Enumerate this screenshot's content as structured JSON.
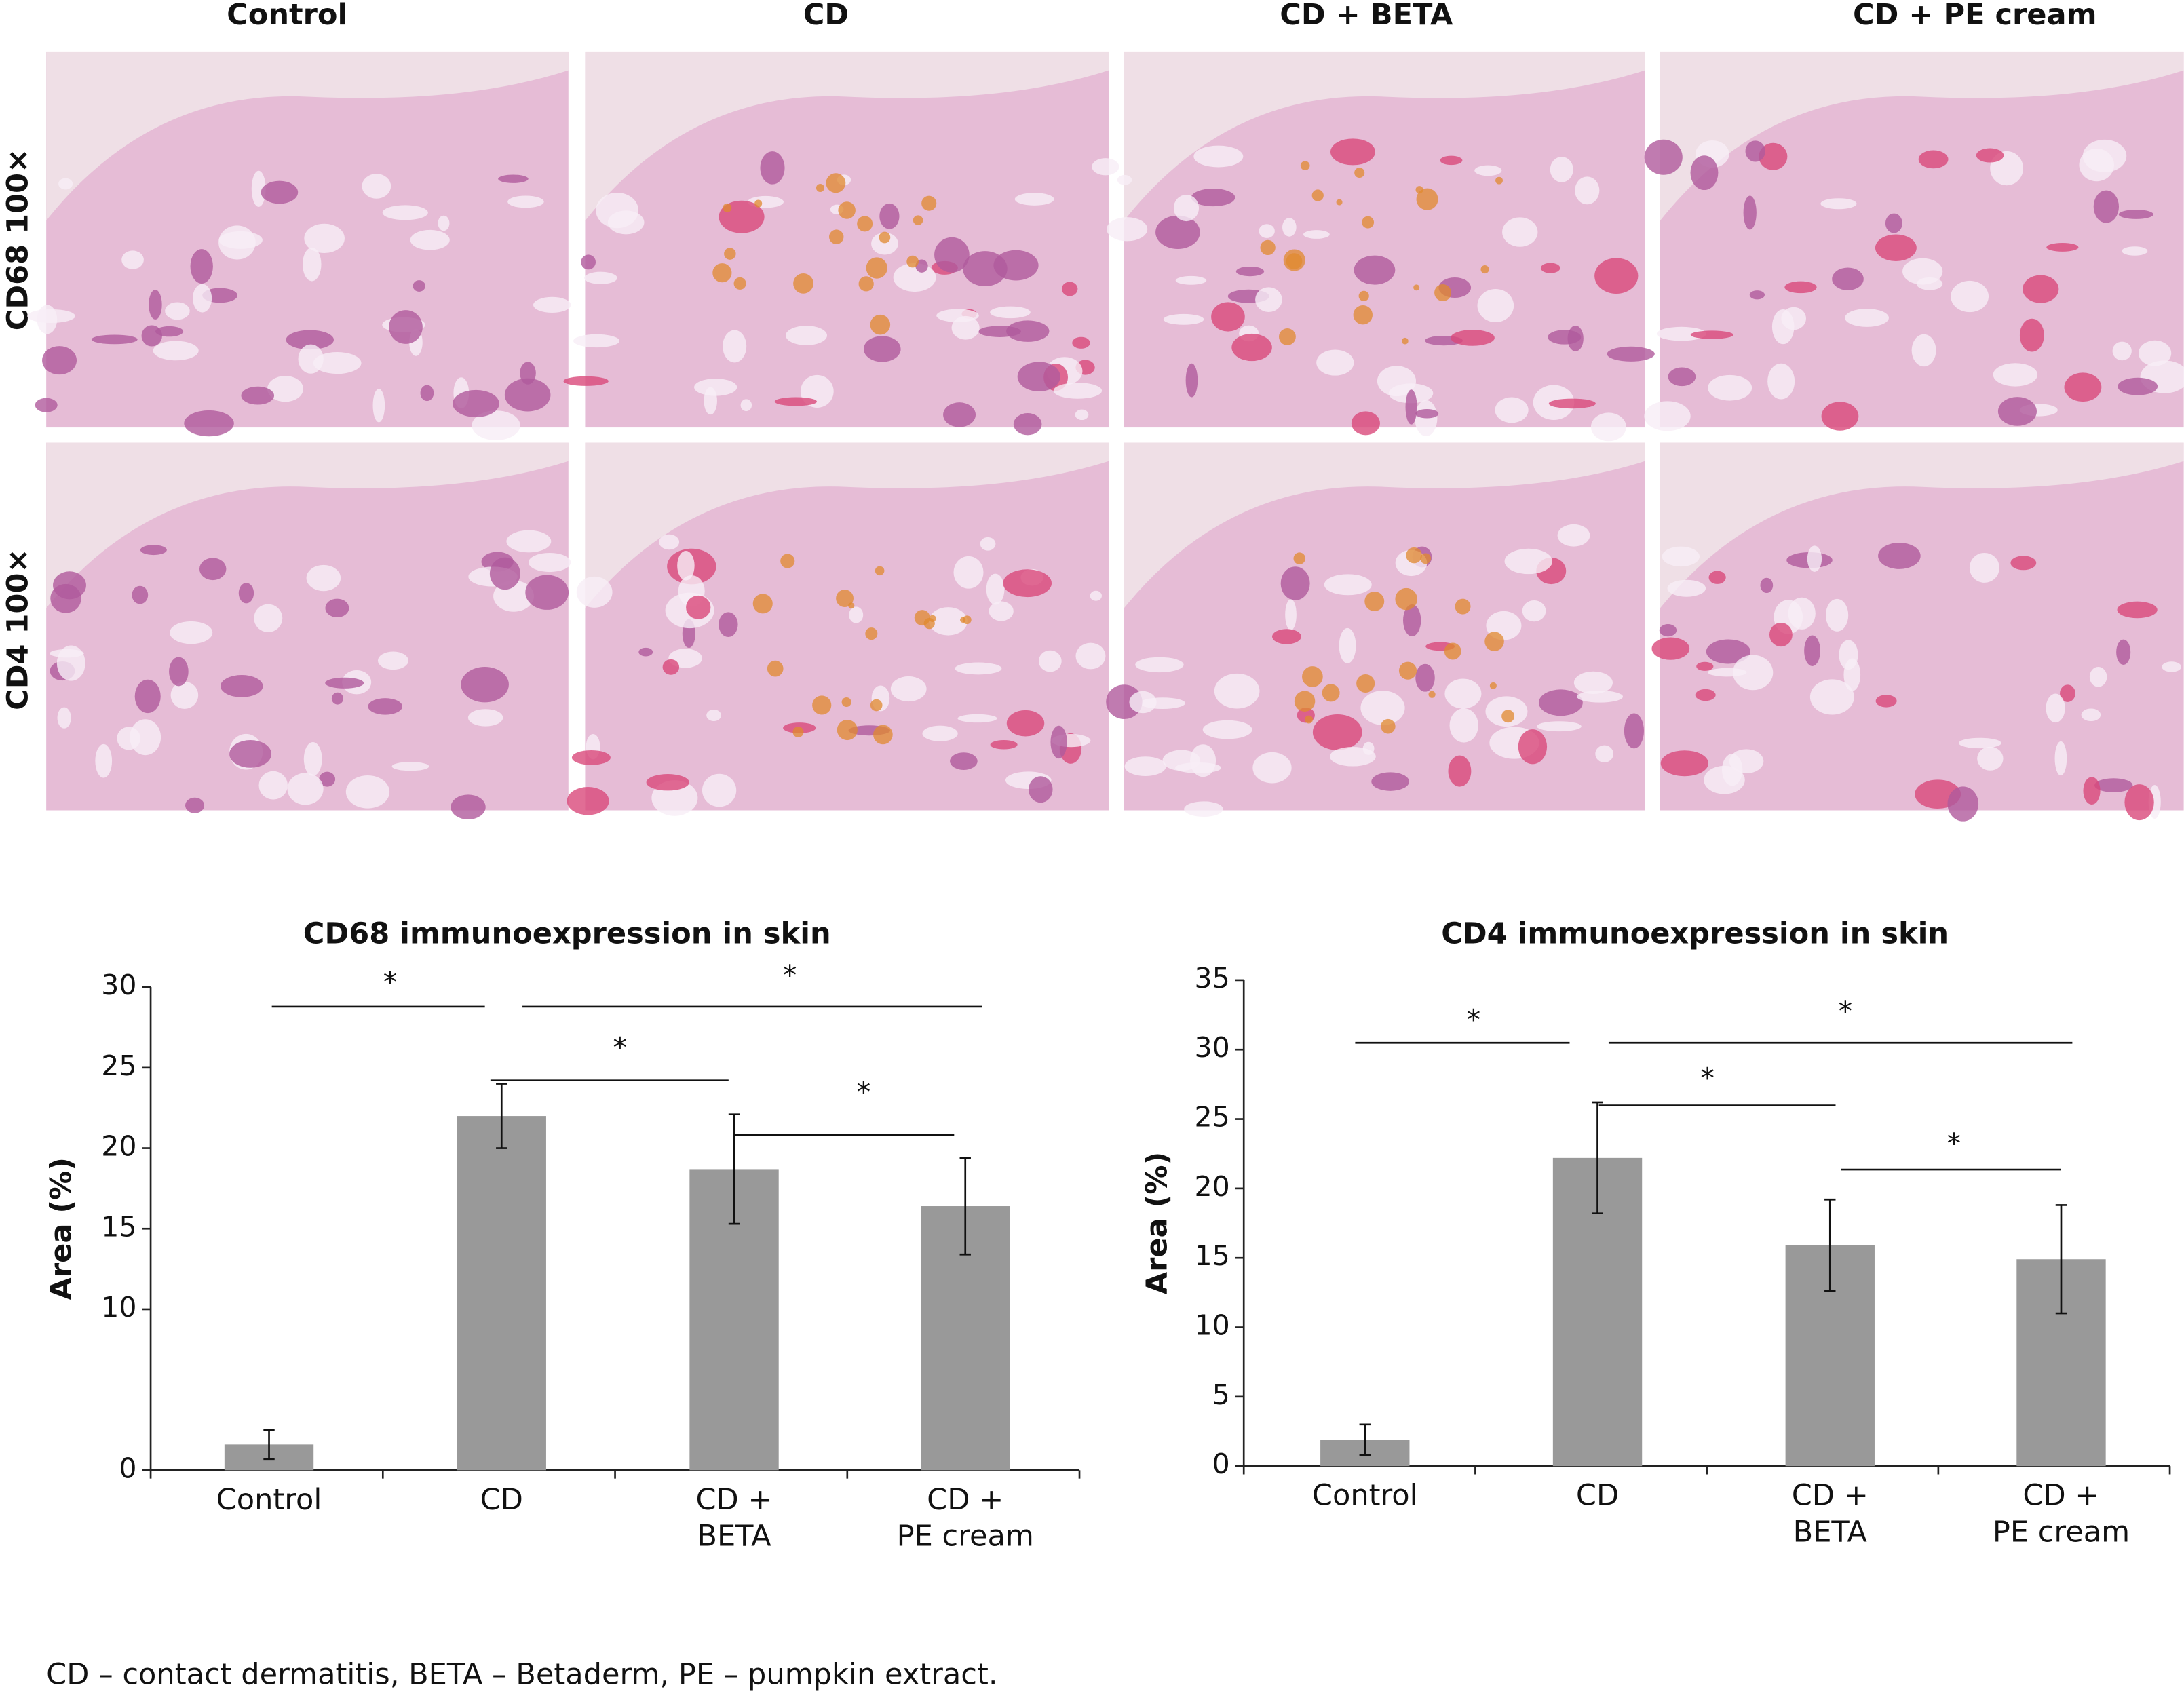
{
  "figure": {
    "columns": [
      "Control",
      "CD",
      "CD + BETA",
      "CD + PE cream"
    ],
    "rows": [
      "CD68 100×",
      "CD4 100×"
    ],
    "caption": "CD – contact dermatitis, BETA – Betaderm, PE – pumpkin extract."
  },
  "chart_data": [
    {
      "type": "bar",
      "title": "CD68 immunoexpression in skin",
      "y_label": "Area (%)",
      "categories": [
        "Control",
        "CD",
        "CD +\nBETA",
        "CD +\nPE cream"
      ],
      "values": [
        1.6,
        22.0,
        18.7,
        16.4
      ],
      "errors": [
        0.9,
        2.0,
        3.4,
        3.0
      ],
      "color": "#999999",
      "ylim": [
        0,
        30
      ],
      "yticks": [
        0,
        10,
        15,
        20,
        25,
        30
      ],
      "significance": [
        "*",
        "*",
        "*",
        "*"
      ]
    },
    {
      "type": "bar",
      "title": "CD4 immunoexpression in skin",
      "y_label": "Area (%)",
      "categories": [
        "Control",
        "CD",
        "CD +\nBETA",
        "CD +\nPE cream"
      ],
      "values": [
        1.9,
        22.2,
        15.9,
        14.9
      ],
      "errors": [
        1.1,
        4.0,
        3.3,
        3.9
      ],
      "color": "#999999",
      "ylim": [
        0,
        35
      ],
      "yticks": [
        0,
        5,
        10,
        15,
        20,
        25,
        30,
        35
      ],
      "significance": [
        "*",
        "*",
        "*",
        "*"
      ]
    }
  ]
}
